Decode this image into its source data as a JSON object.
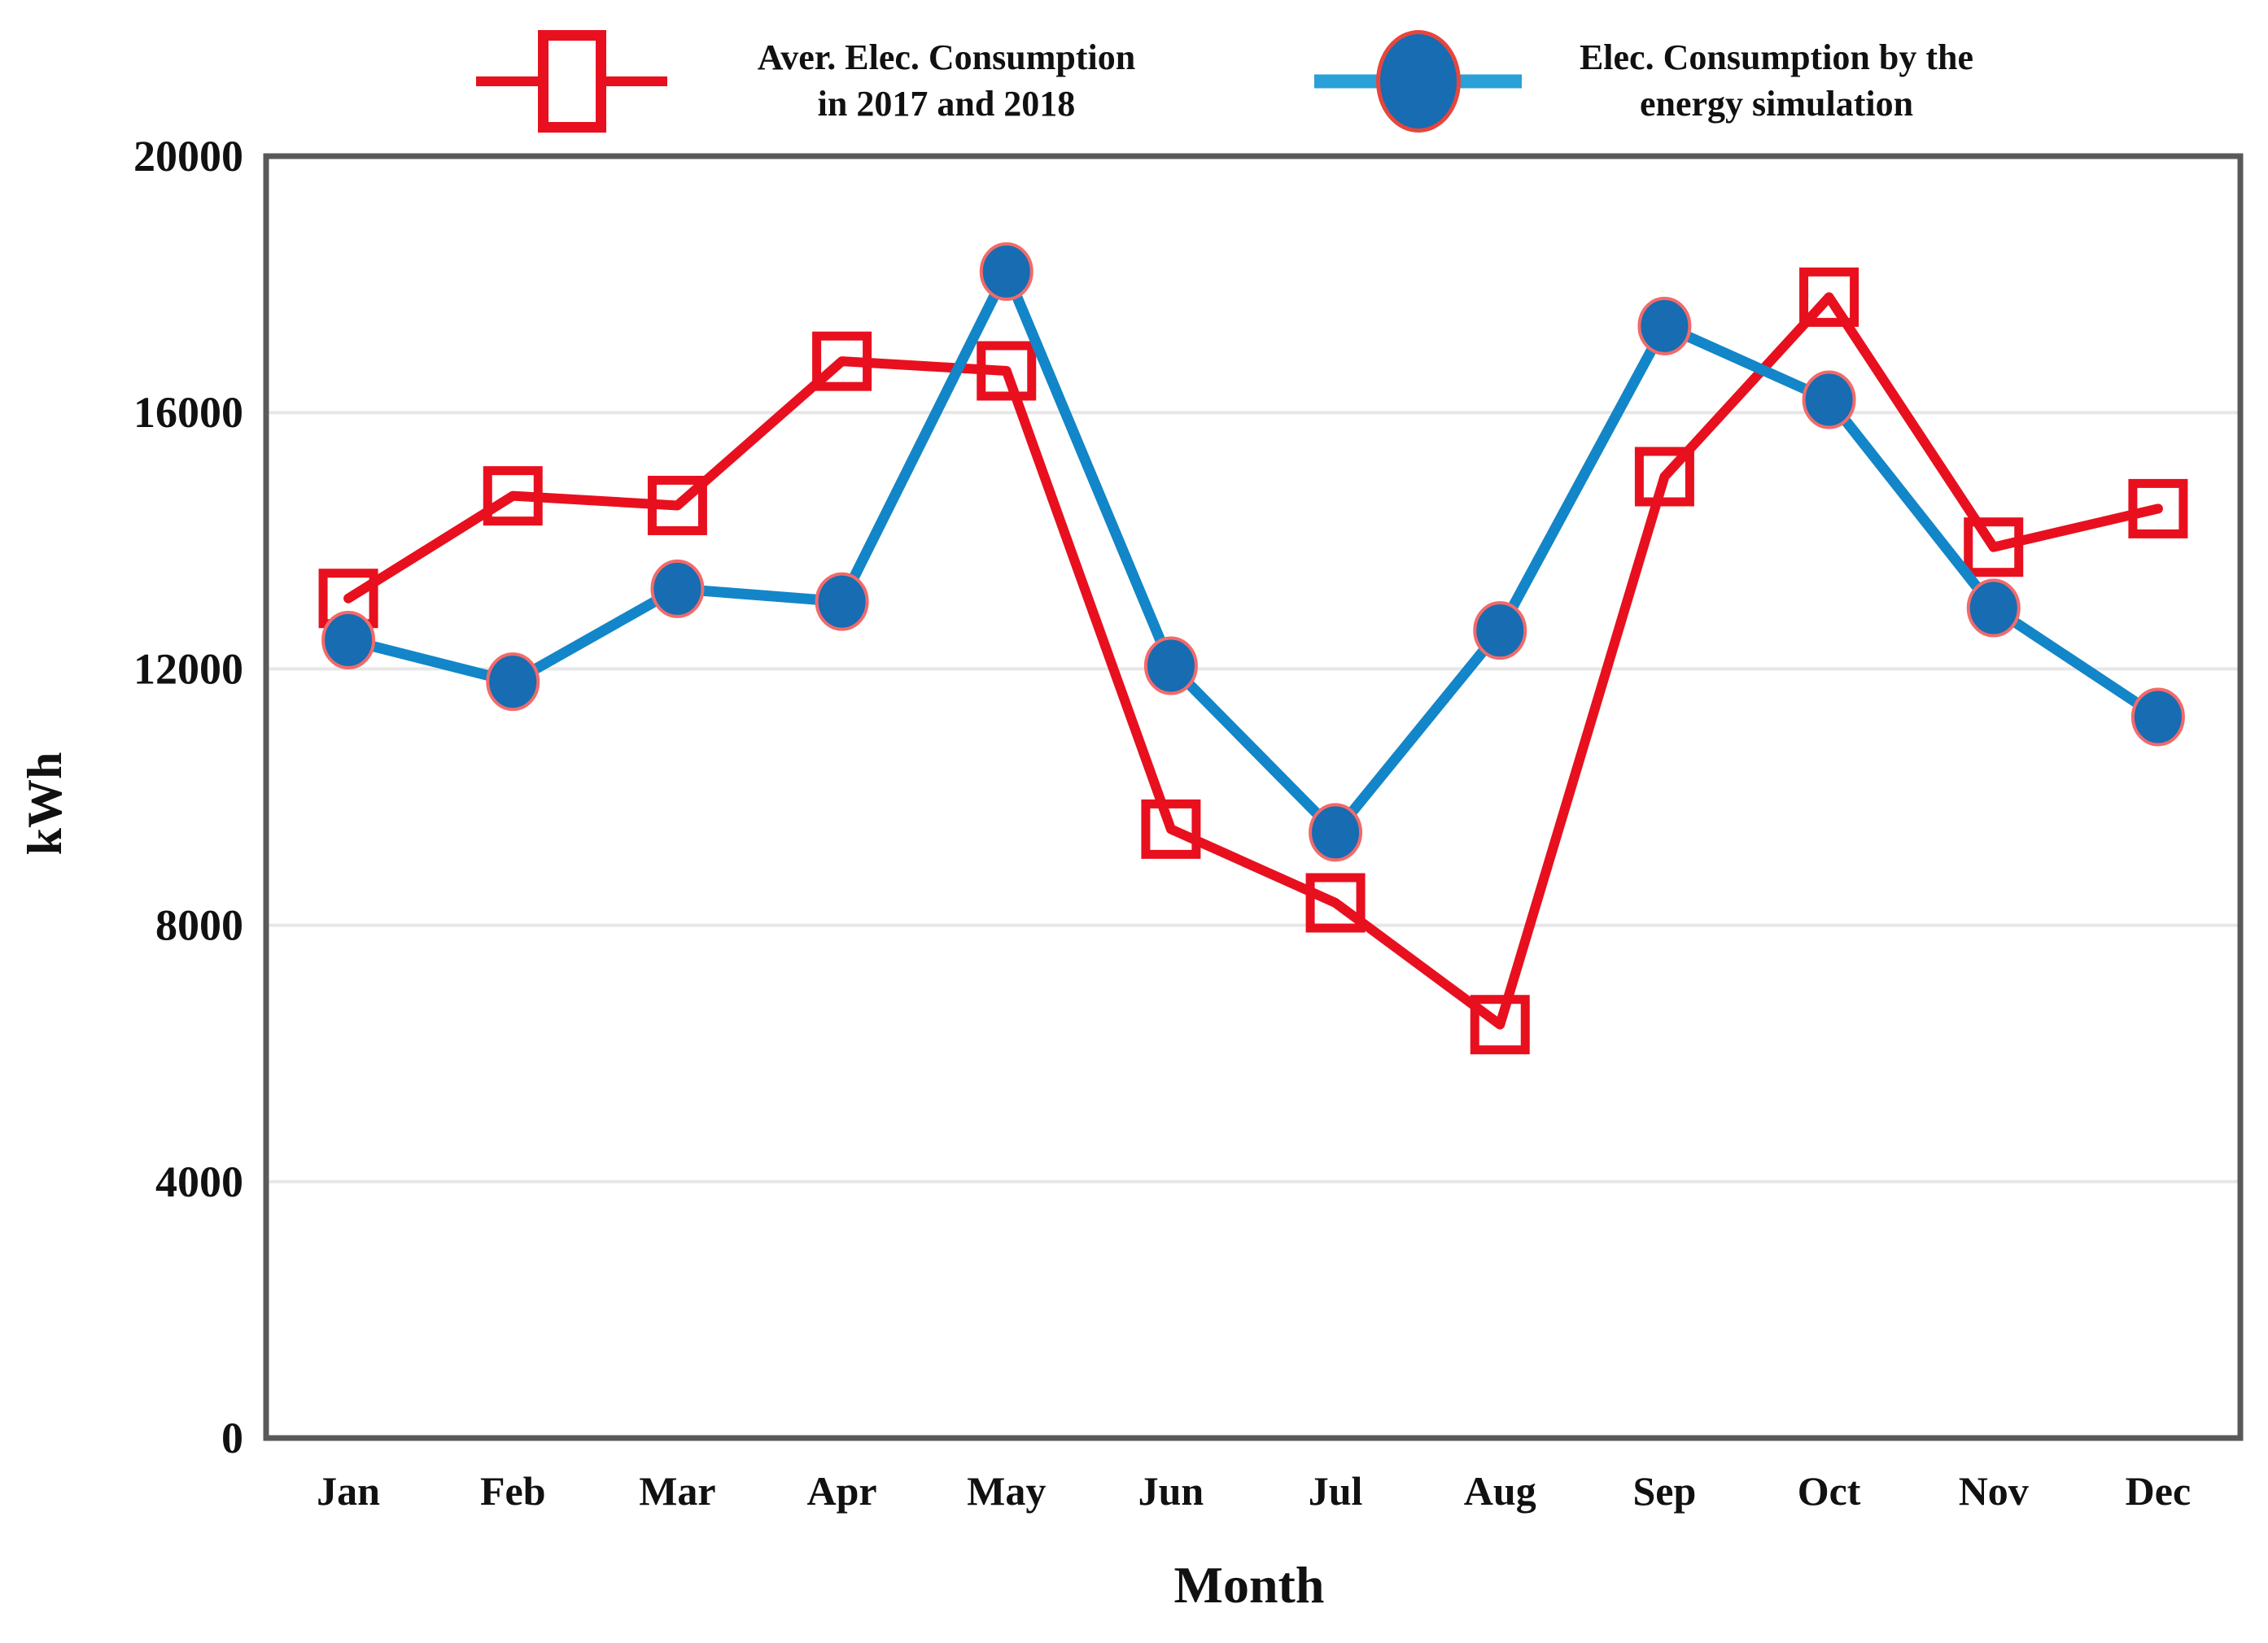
{
  "figure": {
    "ylabel": "kWh",
    "xlabel": "Month",
    "legend": {
      "entries": [
        {
          "id": "measured",
          "marker": "open-square-red",
          "line1": "Aver. Elec. Consumption",
          "line2": "in 2017 and 2018"
        },
        {
          "id": "simulated",
          "marker": "filled-circle-blue",
          "line1": "Elec. Consumption by the",
          "line2": "energy simulation"
        }
      ]
    }
  },
  "chart_data": {
    "type": "line",
    "title": "",
    "categories": [
      "Jan",
      "Feb",
      "Mar",
      "Apr",
      "May",
      "Jun",
      "Jul",
      "Aug",
      "Sep",
      "Oct",
      "Nov",
      "Dec"
    ],
    "series": [
      {
        "name": "Aver. Elec. Consumption in 2017 and 2018",
        "marker": "open-square",
        "color": "#e8101e",
        "values": [
          13100,
          14700,
          14550,
          16800,
          16650,
          9500,
          8350,
          6450,
          15000,
          17800,
          13900,
          14500
        ]
      },
      {
        "name": "Elec. Consumption by the energy simulation",
        "marker": "filled-circle",
        "color": "#1286c8",
        "marker_fill": "#176cb2",
        "marker_edge": "#f26a6a",
        "values": [
          12450,
          11800,
          13250,
          13050,
          18200,
          12050,
          9450,
          12600,
          17350,
          16200,
          12950,
          11250
        ]
      }
    ],
    "xlabel": "Month",
    "ylabel": "kWh",
    "ylim": [
      0,
      20000
    ],
    "yticks": [
      0,
      4000,
      8000,
      12000,
      16000,
      20000
    ],
    "ytick_labels": [
      "0",
      "4000",
      "8000",
      "12000",
      "16000",
      "20000"
    ],
    "grid": true,
    "legend_position": "top"
  },
  "colors": {
    "red": "#e8101e",
    "blue_line": "#1286c8",
    "blue_fill": "#176cb2",
    "circle_edge": "#f26a6a",
    "legend_blue_line": "#2aa0d8",
    "legend_ellipse_edge": "#e8453c",
    "grid": "#e7e7e7",
    "plot_border": "#595959",
    "text": "#111111"
  }
}
